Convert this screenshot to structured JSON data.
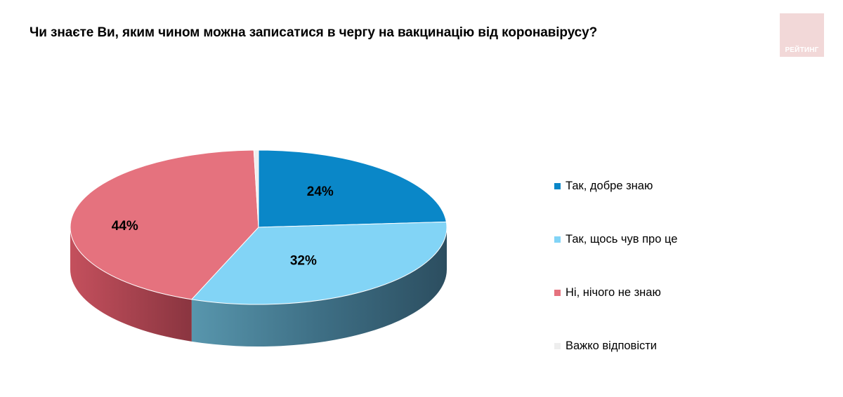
{
  "title": "Чи знаєте Ви, яким чином можна записатися в чергу на вакцинацію від коронавірусу?",
  "logo": {
    "text": "РЕЙТИНГ"
  },
  "chart_data": {
    "type": "pie",
    "categories": [
      "Так, добре знаю",
      "Так, щось чув про це",
      "Ні, нічого не знаю",
      "Важко відповісти"
    ],
    "values": [
      24,
      32,
      44,
      0.4
    ],
    "labels": [
      "24%",
      "32%",
      "44%",
      ""
    ],
    "colors": [
      "#0a87c8",
      "#82d4f6",
      "#e5727e",
      "#eeeeee"
    ],
    "legend_position": "right"
  }
}
